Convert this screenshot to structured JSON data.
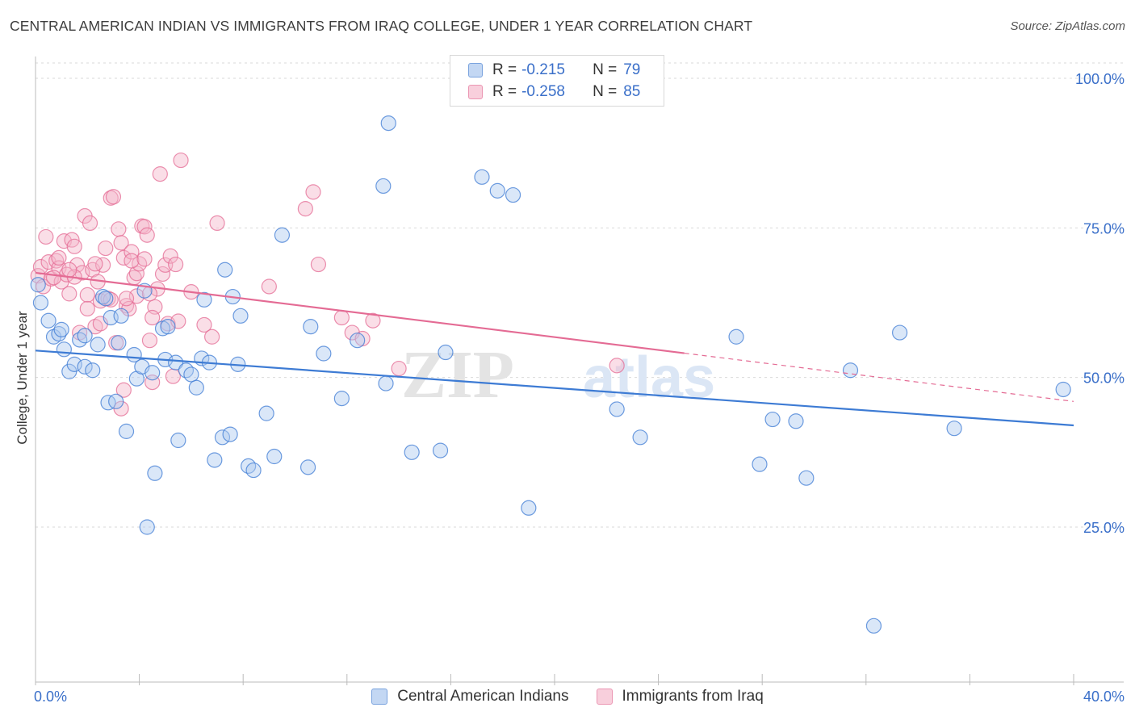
{
  "title": "CENTRAL AMERICAN INDIAN VS IMMIGRANTS FROM IRAQ COLLEGE, UNDER 1 YEAR CORRELATION CHART",
  "source": "Source: ZipAtlas.com",
  "watermark": {
    "zip": "ZIP",
    "atlas": "atlas"
  },
  "colors": {
    "blue": "#3d7bd4",
    "blue_fill": "#aec9ef",
    "pink": "#e46b94",
    "pink_fill": "#f5b6ca",
    "axis_label": "#3a6fc9",
    "grid": "#d9d9d9"
  },
  "legend": {
    "series": [
      {
        "r_label": "R =",
        "r_value": "-0.215",
        "n_label": "N =",
        "n_value": "79"
      },
      {
        "r_label": "R =",
        "r_value": "-0.258",
        "n_label": "N =",
        "n_value": "85"
      }
    ]
  },
  "chart_data": {
    "type": "scatter",
    "title": "CENTRAL AMERICAN INDIAN VS IMMIGRANTS FROM IRAQ COLLEGE, UNDER 1 YEAR CORRELATION CHART",
    "xlabel": "",
    "ylabel": "College, Under 1 year",
    "xlim": [
      0,
      40
    ],
    "ylim": [
      0,
      105
    ],
    "x_tick_labels": [
      "0.0%",
      "40.0%"
    ],
    "y_tick_labels": [
      "100.0%",
      "75.0%",
      "50.0%",
      "25.0%"
    ],
    "y_tick_values": [
      100,
      75,
      50,
      25
    ],
    "series": [
      {
        "name": "Central American Indians",
        "trend": {
          "x": [
            0,
            40
          ],
          "y": [
            54.5,
            42.0
          ],
          "dashed_from": null
        },
        "points": [
          [
            0.2,
            62.5
          ],
          [
            0.5,
            59.5
          ],
          [
            0.7,
            56.8
          ],
          [
            0.9,
            57.3
          ],
          [
            1.0,
            58.0
          ],
          [
            1.1,
            54.7
          ],
          [
            1.3,
            51.0
          ],
          [
            1.5,
            52.2
          ],
          [
            1.7,
            56.3
          ],
          [
            1.9,
            51.8
          ],
          [
            2.2,
            51.2
          ],
          [
            2.4,
            55.5
          ],
          [
            2.6,
            63.5
          ],
          [
            2.7,
            63.2
          ],
          [
            2.8,
            45.8
          ],
          [
            2.9,
            60.0
          ],
          [
            3.1,
            46.0
          ],
          [
            3.3,
            60.3
          ],
          [
            3.5,
            41.0
          ],
          [
            3.8,
            53.8
          ],
          [
            3.9,
            49.8
          ],
          [
            4.1,
            51.8
          ],
          [
            4.2,
            64.5
          ],
          [
            4.3,
            25.0
          ],
          [
            4.5,
            50.8
          ],
          [
            4.6,
            34.0
          ],
          [
            4.9,
            58.2
          ],
          [
            5.0,
            53.0
          ],
          [
            5.1,
            58.5
          ],
          [
            5.4,
            52.5
          ],
          [
            5.5,
            39.5
          ],
          [
            5.8,
            51.2
          ],
          [
            6.0,
            50.5
          ],
          [
            6.2,
            48.3
          ],
          [
            6.4,
            53.2
          ],
          [
            6.5,
            63.0
          ],
          [
            6.7,
            52.5
          ],
          [
            6.9,
            36.2
          ],
          [
            7.2,
            40.0
          ],
          [
            7.3,
            68.0
          ],
          [
            7.5,
            40.5
          ],
          [
            7.6,
            63.5
          ],
          [
            7.8,
            52.2
          ],
          [
            7.9,
            60.3
          ],
          [
            8.2,
            35.2
          ],
          [
            8.4,
            34.5
          ],
          [
            8.9,
            44.0
          ],
          [
            9.2,
            36.8
          ],
          [
            9.5,
            73.8
          ],
          [
            10.5,
            35.0
          ],
          [
            10.6,
            58.5
          ],
          [
            11.1,
            54.0
          ],
          [
            11.8,
            46.5
          ],
          [
            12.4,
            56.2
          ],
          [
            13.4,
            82.0
          ],
          [
            13.6,
            92.5
          ],
          [
            13.5,
            49.0
          ],
          [
            14.5,
            37.5
          ],
          [
            15.6,
            37.8
          ],
          [
            15.8,
            54.2
          ],
          [
            17.2,
            83.5
          ],
          [
            17.8,
            81.2
          ],
          [
            18.4,
            80.5
          ],
          [
            19.0,
            28.2
          ],
          [
            22.4,
            44.7
          ],
          [
            23.3,
            40.0
          ],
          [
            27.0,
            56.8
          ],
          [
            27.9,
            35.5
          ],
          [
            28.4,
            43.0
          ],
          [
            29.3,
            42.7
          ],
          [
            29.7,
            33.2
          ],
          [
            31.4,
            51.2
          ],
          [
            32.3,
            8.5
          ],
          [
            33.3,
            57.5
          ],
          [
            35.4,
            41.5
          ],
          [
            39.6,
            48.0
          ],
          [
            0.1,
            65.5
          ],
          [
            3.2,
            55.8
          ],
          [
            1.9,
            57.0
          ]
        ]
      },
      {
        "name": "Immigrants from Iraq",
        "trend": {
          "x": [
            0,
            40
          ],
          "y": [
            67.5,
            46.0
          ],
          "dashed_from": 25.0
        },
        "points": [
          [
            0.1,
            67.0
          ],
          [
            0.2,
            68.5
          ],
          [
            0.3,
            65.2
          ],
          [
            0.4,
            73.5
          ],
          [
            0.5,
            69.3
          ],
          [
            0.6,
            66.5
          ],
          [
            0.8,
            69.5
          ],
          [
            0.9,
            68.3
          ],
          [
            1.0,
            66.0
          ],
          [
            1.1,
            72.8
          ],
          [
            1.2,
            67.2
          ],
          [
            1.3,
            64.0
          ],
          [
            1.4,
            73.0
          ],
          [
            1.5,
            71.9
          ],
          [
            1.6,
            68.8
          ],
          [
            1.7,
            57.5
          ],
          [
            1.8,
            67.5
          ],
          [
            1.9,
            77.0
          ],
          [
            2.0,
            63.8
          ],
          [
            2.1,
            75.8
          ],
          [
            2.2,
            68.0
          ],
          [
            2.3,
            58.5
          ],
          [
            2.4,
            66.0
          ],
          [
            2.5,
            62.8
          ],
          [
            2.6,
            68.8
          ],
          [
            2.7,
            71.6
          ],
          [
            2.8,
            63.2
          ],
          [
            2.9,
            80.0
          ],
          [
            3.0,
            80.2
          ],
          [
            3.1,
            55.8
          ],
          [
            3.2,
            74.8
          ],
          [
            3.3,
            72.5
          ],
          [
            3.4,
            70.0
          ],
          [
            3.5,
            62.0
          ],
          [
            3.6,
            61.5
          ],
          [
            3.7,
            71.0
          ],
          [
            3.8,
            66.7
          ],
          [
            3.9,
            67.4
          ],
          [
            4.0,
            69.0
          ],
          [
            4.1,
            75.3
          ],
          [
            4.2,
            75.2
          ],
          [
            4.3,
            73.8
          ],
          [
            4.4,
            56.2
          ],
          [
            4.5,
            49.2
          ],
          [
            4.6,
            61.8
          ],
          [
            4.7,
            64.8
          ],
          [
            4.8,
            84.0
          ],
          [
            4.9,
            67.3
          ],
          [
            5.0,
            68.8
          ],
          [
            5.1,
            59.0
          ],
          [
            5.2,
            70.3
          ],
          [
            5.3,
            50.2
          ],
          [
            5.4,
            68.9
          ],
          [
            5.6,
            86.3
          ],
          [
            6.0,
            64.3
          ],
          [
            6.5,
            58.8
          ],
          [
            6.8,
            56.8
          ],
          [
            7.0,
            75.8
          ],
          [
            9.0,
            65.2
          ],
          [
            10.4,
            78.2
          ],
          [
            10.7,
            81.0
          ],
          [
            10.9,
            68.9
          ],
          [
            11.8,
            60.0
          ],
          [
            12.2,
            57.5
          ],
          [
            12.6,
            56.5
          ],
          [
            13.0,
            59.5
          ],
          [
            14.0,
            51.5
          ],
          [
            22.4,
            52.0
          ],
          [
            3.3,
            44.8
          ],
          [
            3.4,
            47.9
          ],
          [
            4.5,
            60.0
          ],
          [
            0.7,
            66.7
          ],
          [
            2.5,
            59.0
          ],
          [
            3.9,
            63.6
          ],
          [
            5.5,
            59.4
          ],
          [
            1.5,
            66.8
          ],
          [
            2.3,
            69.0
          ],
          [
            3.7,
            69.5
          ],
          [
            0.9,
            70.0
          ],
          [
            4.2,
            69.8
          ],
          [
            2.9,
            63.0
          ],
          [
            3.5,
            63.2
          ],
          [
            1.3,
            68.0
          ],
          [
            4.4,
            64.0
          ],
          [
            2.0,
            61.5
          ]
        ]
      }
    ]
  },
  "bottom_legend": [
    "Central American Indians",
    "Immigrants from Iraq"
  ]
}
